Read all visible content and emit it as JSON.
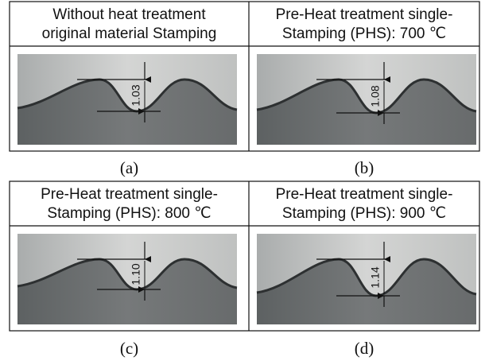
{
  "panels": [
    {
      "title": [
        "Without heat treatment",
        "original material Stamping"
      ],
      "measurement": "1.03",
      "caption": "(a)"
    },
    {
      "title": [
        "Pre-Heat treatment single-",
        "Stamping (PHS): 700 ℃"
      ],
      "measurement": "1.08",
      "caption": "(b)"
    },
    {
      "title": [
        "Pre-Heat treatment single-",
        "Stamping (PHS): 800 ℃"
      ],
      "measurement": "1.10",
      "caption": "(c)"
    },
    {
      "title": [
        "Pre-Heat treatment single-",
        "Stamping (PHS): 900 ℃"
      ],
      "measurement": "1.14",
      "caption": "(d)"
    }
  ]
}
